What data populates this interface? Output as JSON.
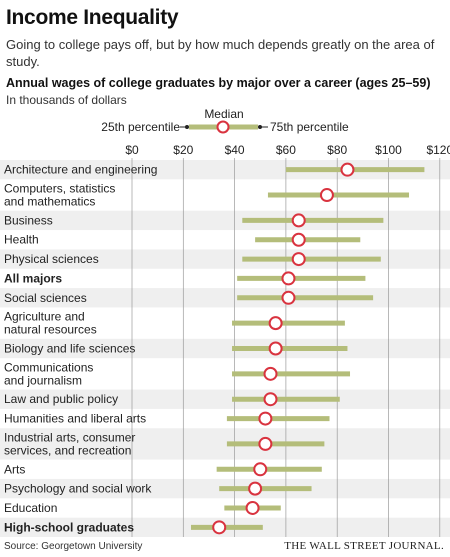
{
  "title": "Income Inequality",
  "subtitle": "Going to college pays off, but by how much depends greatly on the area of study.",
  "chart_heading": "Annual wages of college graduates by major over a career (ages 25–59)",
  "units_note": "In thousands of dollars",
  "legend": {
    "median_label": "Median",
    "p25_label": "25th percentile",
    "p75_label": "75th percentile"
  },
  "source": "Source: Georgetown University",
  "credit": "THE WALL STREET JOURNAL.",
  "colors": {
    "bar": "#b4bd7a",
    "median_stroke": "#d9333f",
    "row_shade": "#efefef",
    "grid": "#9a9a9a"
  },
  "chart_data": {
    "type": "range-dot",
    "title": "Annual wages of college graduates by major over a career (ages 25–59)",
    "units": "In thousands of dollars",
    "x_ticks": [
      "$0",
      "$20",
      "$40",
      "$60",
      "$80",
      "$100",
      "$120"
    ],
    "xlim": [
      0,
      120
    ],
    "grid": true,
    "categories": [
      {
        "label": [
          "Architecture and engineering"
        ],
        "p25": 60,
        "median": 84,
        "p75": 114,
        "bold": false
      },
      {
        "label": [
          "Computers, statistics",
          "and mathematics"
        ],
        "p25": 53,
        "median": 76,
        "p75": 108,
        "bold": false
      },
      {
        "label": [
          "Business"
        ],
        "p25": 43,
        "median": 65,
        "p75": 98,
        "bold": false
      },
      {
        "label": [
          "Health"
        ],
        "p25": 48,
        "median": 65,
        "p75": 89,
        "bold": false
      },
      {
        "label": [
          "Physical sciences"
        ],
        "p25": 43,
        "median": 65,
        "p75": 97,
        "bold": false
      },
      {
        "label": [
          "All majors"
        ],
        "p25": 41,
        "median": 61,
        "p75": 91,
        "bold": true
      },
      {
        "label": [
          "Social sciences"
        ],
        "p25": 41,
        "median": 61,
        "p75": 94,
        "bold": false
      },
      {
        "label": [
          "Agriculture and",
          "natural resources"
        ],
        "p25": 39,
        "median": 56,
        "p75": 83,
        "bold": false
      },
      {
        "label": [
          "Biology and life sciences"
        ],
        "p25": 39,
        "median": 56,
        "p75": 84,
        "bold": false
      },
      {
        "label": [
          "Communications",
          "and journalism"
        ],
        "p25": 39,
        "median": 54,
        "p75": 85,
        "bold": false
      },
      {
        "label": [
          "Law and public policy"
        ],
        "p25": 39,
        "median": 54,
        "p75": 81,
        "bold": false
      },
      {
        "label": [
          "Humanities and liberal arts"
        ],
        "p25": 37,
        "median": 52,
        "p75": 77,
        "bold": false
      },
      {
        "label": [
          "Industrial arts, consumer",
          "services, and recreation"
        ],
        "p25": 37,
        "median": 52,
        "p75": 75,
        "bold": false
      },
      {
        "label": [
          "Arts"
        ],
        "p25": 33,
        "median": 50,
        "p75": 74,
        "bold": false
      },
      {
        "label": [
          "Psychology and social work"
        ],
        "p25": 34,
        "median": 48,
        "p75": 70,
        "bold": false
      },
      {
        "label": [
          "Education"
        ],
        "p25": 36,
        "median": 47,
        "p75": 58,
        "bold": false
      },
      {
        "label": [
          "High-school graduates"
        ],
        "p25": 23,
        "median": 34,
        "p75": 51,
        "bold": true
      }
    ]
  }
}
